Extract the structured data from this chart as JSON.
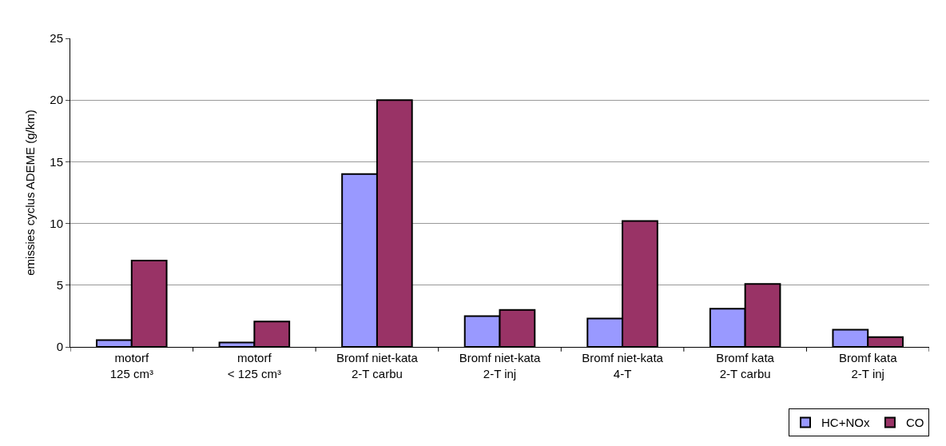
{
  "chart_data": {
    "type": "bar",
    "ylabel": "emissies cyclus ADEME (g/km)",
    "categories": [
      "motorf\n125 cm³",
      "motorf\n< 125 cm³",
      "Bromf niet-kata\n2-T carbu",
      "Bromf niet-kata\n2-T inj",
      "Bromf niet-kata\n4-T",
      "Bromf kata\n2-T carbu",
      "Bromf kata\n2-T inj"
    ],
    "series": [
      {
        "name": "HC+NOx",
        "color": "#9999ff",
        "values": [
          0.55,
          0.35,
          14,
          2.5,
          2.3,
          3.1,
          1.4
        ]
      },
      {
        "name": "CO",
        "color": "#993366",
        "values": [
          7,
          2.05,
          20,
          3,
          10.2,
          5.1,
          0.8
        ]
      }
    ],
    "ylim": [
      0,
      25
    ],
    "yticks": [
      0,
      5,
      10,
      15,
      20,
      25
    ],
    "grid": "y",
    "legend": "bottom right"
  }
}
